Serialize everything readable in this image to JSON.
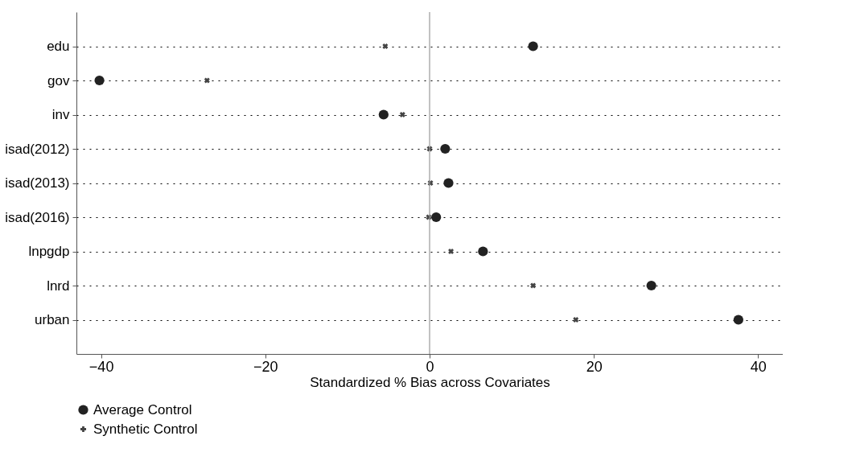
{
  "chart_data": {
    "type": "scatter",
    "xlabel": "Standardized % Bias across Covariates",
    "categories": [
      "edu",
      "gov",
      "inv",
      "isad(2012)",
      "isad(2013)",
      "isad(2016)",
      "lnpgdp",
      "lnrd",
      "urban"
    ],
    "series": [
      {
        "name": "Average Control",
        "color": "#222222",
        "marker": "circle",
        "values": [
          12.6,
          -40.2,
          -5.6,
          1.9,
          2.3,
          0.8,
          6.5,
          27.0,
          37.6
        ]
      },
      {
        "name": "Synthetic Control",
        "color": "#444444",
        "marker": "cross",
        "values": [
          -5.4,
          -27.1,
          -3.3,
          0.0,
          0.1,
          -0.1,
          2.6,
          12.6,
          17.8
        ]
      }
    ],
    "orientation": "horizontal",
    "xlim": [
      -43,
      43
    ],
    "xticks": [
      -40,
      -20,
      0,
      20,
      40
    ],
    "grid": "y",
    "legend": "bottom",
    "ref_lines": [
      {
        "axis": "x",
        "value": 0,
        "color": "#999999"
      }
    ]
  }
}
